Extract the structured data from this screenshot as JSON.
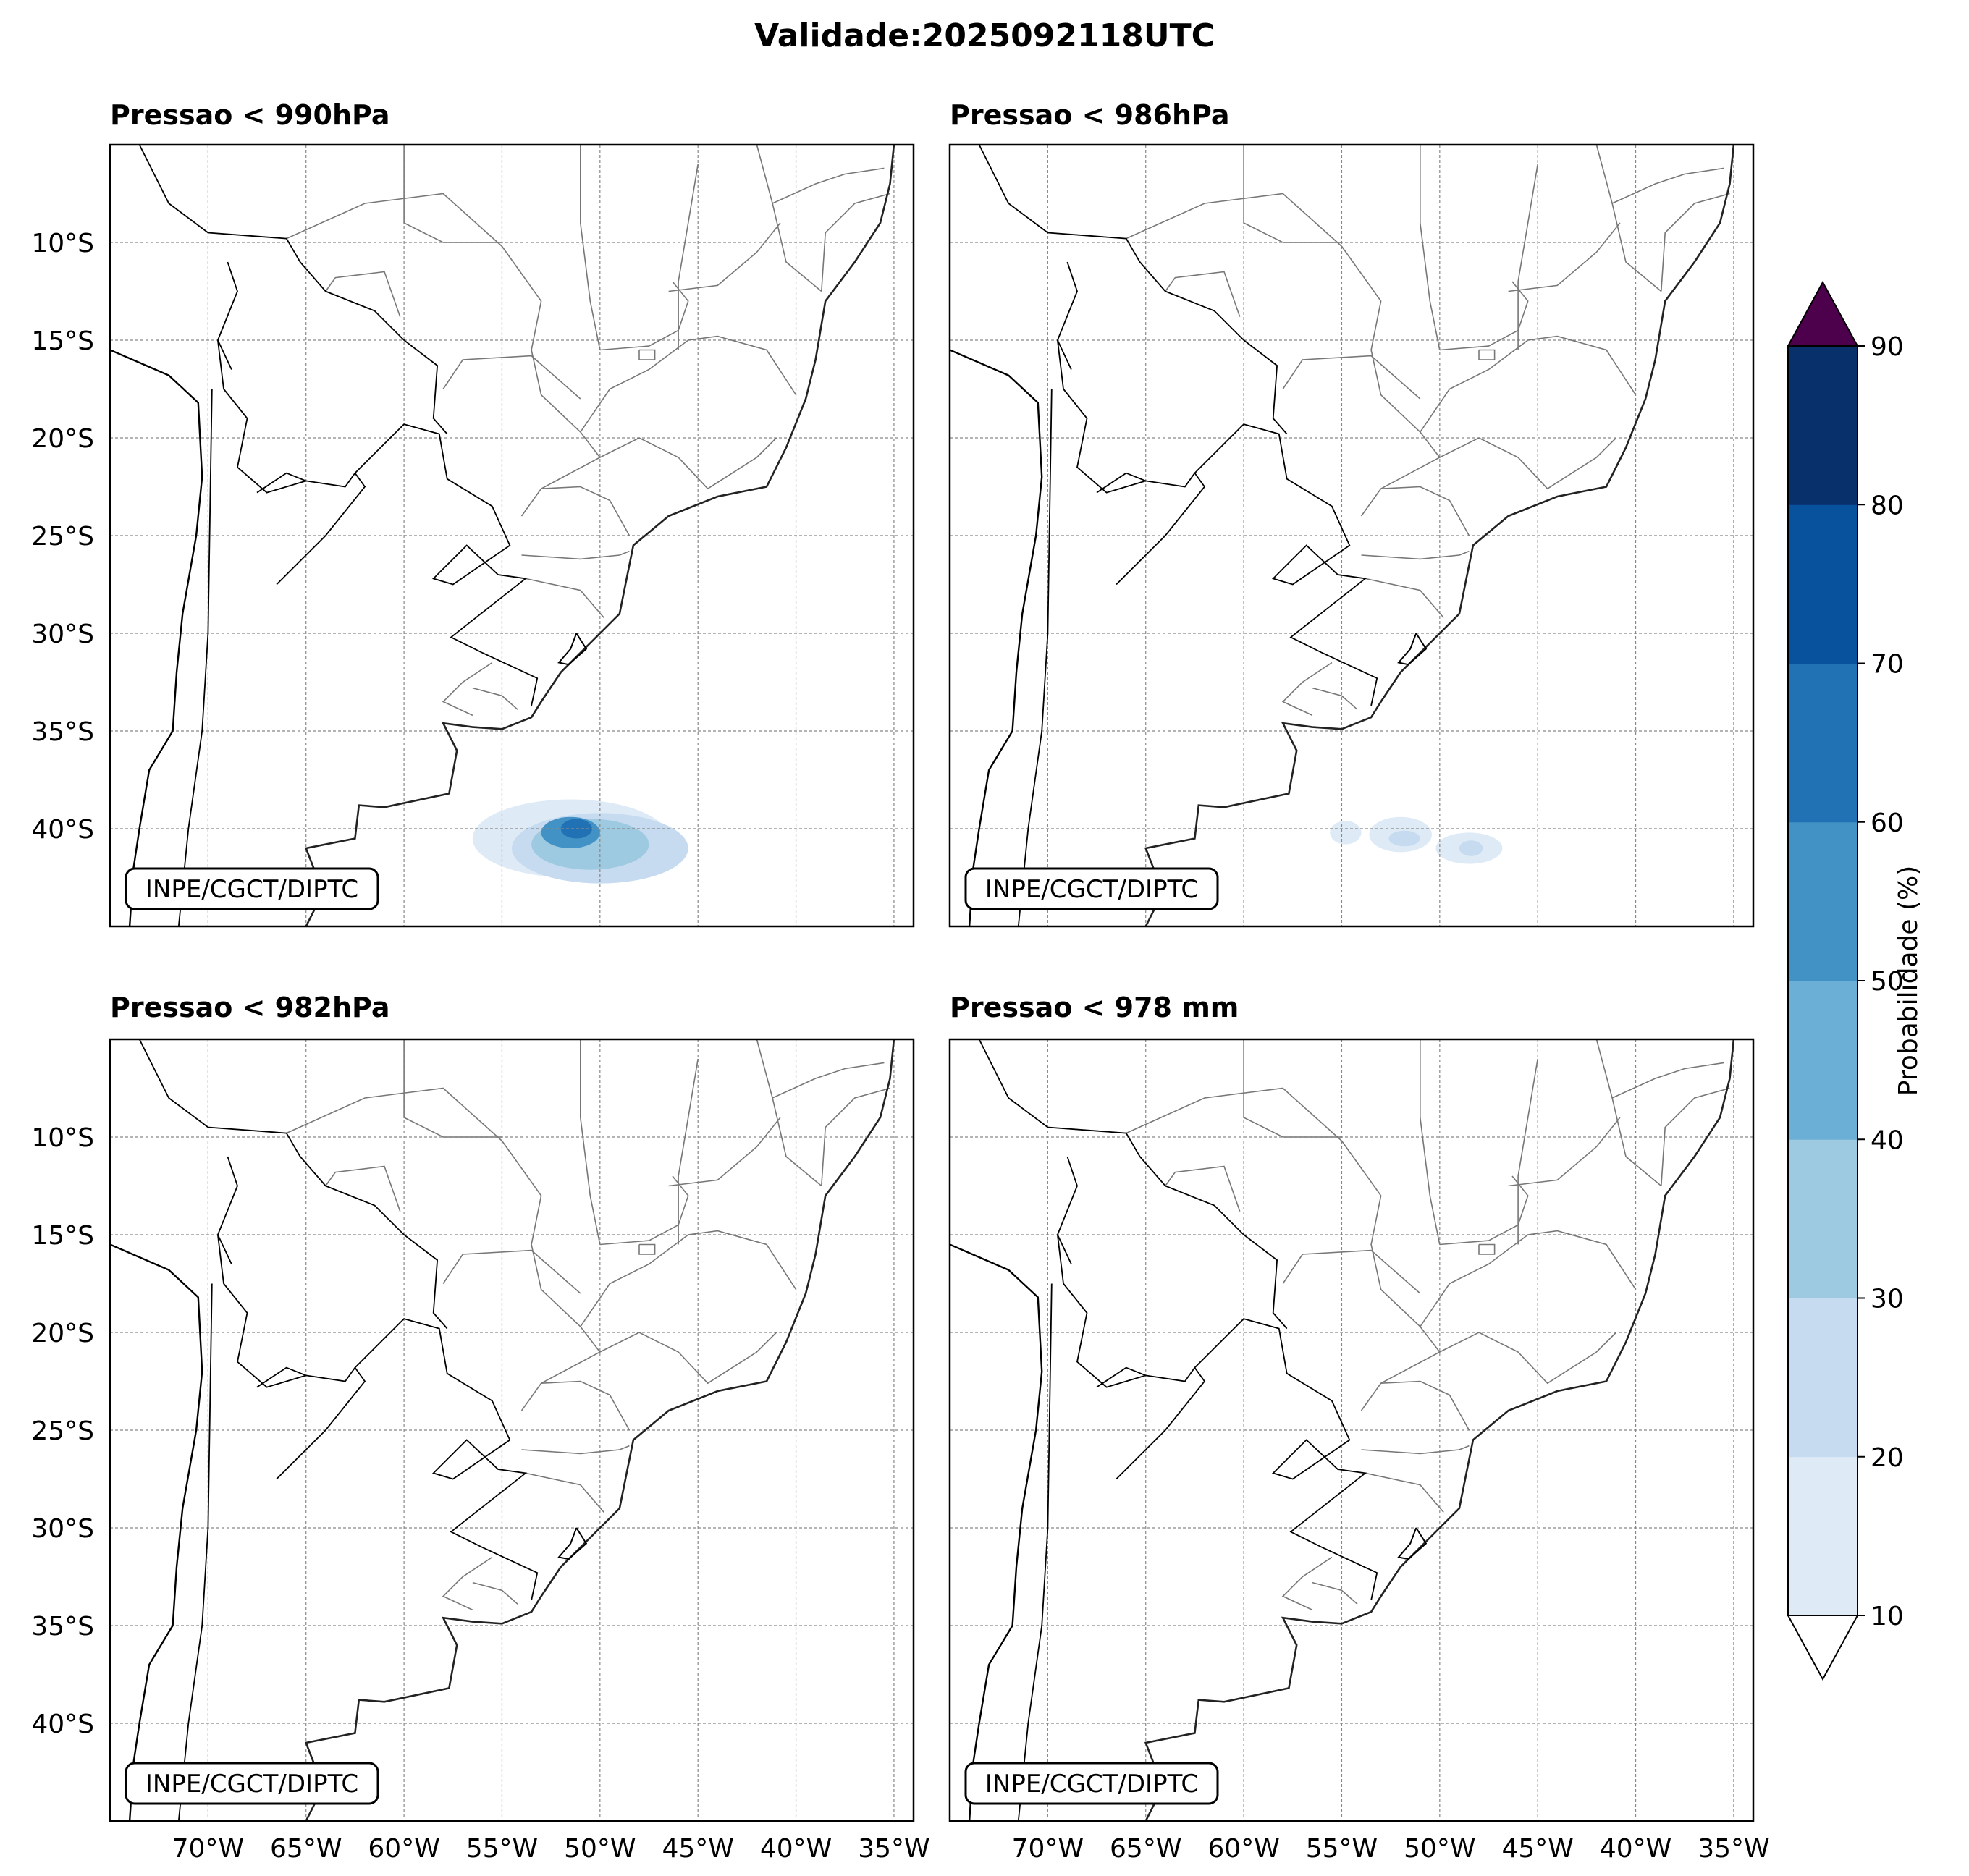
{
  "title": "Validade:2025092118UTC",
  "panels": [
    {
      "title": "Pressao < 990hPa",
      "credit": "INPE/CGCT/DIPTC",
      "blobs": [
        {
          "lon": -51.5,
          "lat": -40.5,
          "rx": 5.0,
          "ry": 2.0,
          "level": 10
        },
        {
          "lon": -50.0,
          "lat": -41.0,
          "rx": 4.5,
          "ry": 1.8,
          "level": 20
        },
        {
          "lon": -50.5,
          "lat": -40.8,
          "rx": 3.0,
          "ry": 1.3,
          "level": 30
        },
        {
          "lon": -51.5,
          "lat": -40.2,
          "rx": 1.5,
          "ry": 0.8,
          "level": 50
        },
        {
          "lon": -51.2,
          "lat": -40.0,
          "rx": 0.8,
          "ry": 0.5,
          "level": 60
        }
      ]
    },
    {
      "title": "Pressao < 986hPa",
      "credit": "INPE/CGCT/DIPTC",
      "blobs": [
        {
          "lon": -54.8,
          "lat": -40.2,
          "rx": 0.8,
          "ry": 0.6,
          "level": 10
        },
        {
          "lon": -52.0,
          "lat": -40.3,
          "rx": 1.6,
          "ry": 0.9,
          "level": 10
        },
        {
          "lon": -48.5,
          "lat": -41.0,
          "rx": 1.7,
          "ry": 0.8,
          "level": 10
        },
        {
          "lon": -51.8,
          "lat": -40.5,
          "rx": 0.8,
          "ry": 0.4,
          "level": 20
        },
        {
          "lon": -48.4,
          "lat": -41.0,
          "rx": 0.6,
          "ry": 0.4,
          "level": 20
        }
      ]
    },
    {
      "title": "Pressao < 982hPa",
      "credit": "INPE/CGCT/DIPTC",
      "blobs": []
    },
    {
      "title": "Pressao < 978 mm",
      "credit": "INPE/CGCT/DIPTC",
      "blobs": []
    }
  ],
  "x_ticks": [
    "70°W",
    "65°W",
    "60°W",
    "55°W",
    "50°W",
    "45°W",
    "40°W",
    "35°W"
  ],
  "x_tick_values": [
    -70,
    -65,
    -60,
    -55,
    -50,
    -45,
    -40,
    -35
  ],
  "y_ticks": [
    "10°S",
    "15°S",
    "20°S",
    "25°S",
    "30°S",
    "35°S",
    "40°S"
  ],
  "y_tick_values": [
    -10,
    -15,
    -20,
    -25,
    -30,
    -35,
    -40
  ],
  "extent": {
    "lon_min": -75,
    "lon_max": -34,
    "lat_min": -45,
    "lat_max": -5
  },
  "colorbar": {
    "label": "Probabilidade (%)",
    "tick_labels": [
      "10",
      "20",
      "30",
      "40",
      "50",
      "60",
      "70",
      "80",
      "90"
    ],
    "levels": [
      10,
      20,
      30,
      40,
      50,
      60,
      70,
      80,
      90
    ],
    "colors": [
      "#deebf7",
      "#c6dbef",
      "#9ecae1",
      "#6baed6",
      "#4292c6",
      "#2171b5",
      "#08519c",
      "#08306b"
    ],
    "over_color": "#4d004b",
    "under_color": "#ffffff"
  }
}
